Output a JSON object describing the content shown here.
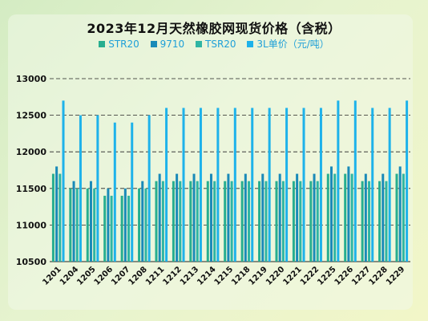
{
  "chart_data": {
    "type": "bar",
    "title": "2023年12月天然橡胶网现货价格（含税）",
    "categories": [
      "1201",
      "1204",
      "1205",
      "1206",
      "1207",
      "1208",
      "1211",
      "1212",
      "1213",
      "1214",
      "1215",
      "1218",
      "1219",
      "1220",
      "1221",
      "1222",
      "1225",
      "1226",
      "1227",
      "1228",
      "1229"
    ],
    "series": [
      {
        "name": "STR20",
        "color": "#27ae8f",
        "values": [
          11700,
          11500,
          11500,
          11400,
          11400,
          11500,
          11600,
          11600,
          11600,
          11600,
          11600,
          11600,
          11600,
          11600,
          11600,
          11600,
          11700,
          11700,
          11600,
          11600,
          11700
        ]
      },
      {
        "name": "9710",
        "color": "#1a8ab8",
        "values": [
          11800,
          11600,
          11600,
          11500,
          11500,
          11600,
          11700,
          11700,
          11700,
          11700,
          11700,
          11700,
          11700,
          11700,
          11700,
          11700,
          11800,
          11800,
          11700,
          11700,
          11800
        ]
      },
      {
        "name": "TSR20",
        "color": "#2fb5a3",
        "values": [
          11700,
          11500,
          11500,
          11400,
          11400,
          11500,
          11600,
          11600,
          11600,
          11600,
          11600,
          11600,
          11600,
          11600,
          11600,
          11600,
          11700,
          11700,
          11600,
          11600,
          11700
        ]
      },
      {
        "name": "3L单价（元/吨）",
        "color": "#1eb2ea",
        "values": [
          12700,
          12500,
          12500,
          12400,
          12400,
          12500,
          12600,
          12600,
          12600,
          12600,
          12600,
          12600,
          12600,
          12600,
          12600,
          12600,
          12700,
          12700,
          12600,
          12600,
          12700
        ]
      }
    ],
    "yticks": [
      10500,
      11000,
      11500,
      12000,
      12500,
      13000
    ],
    "ylim": [
      10500,
      13000
    ],
    "grid": true,
    "legend": "top-center"
  }
}
